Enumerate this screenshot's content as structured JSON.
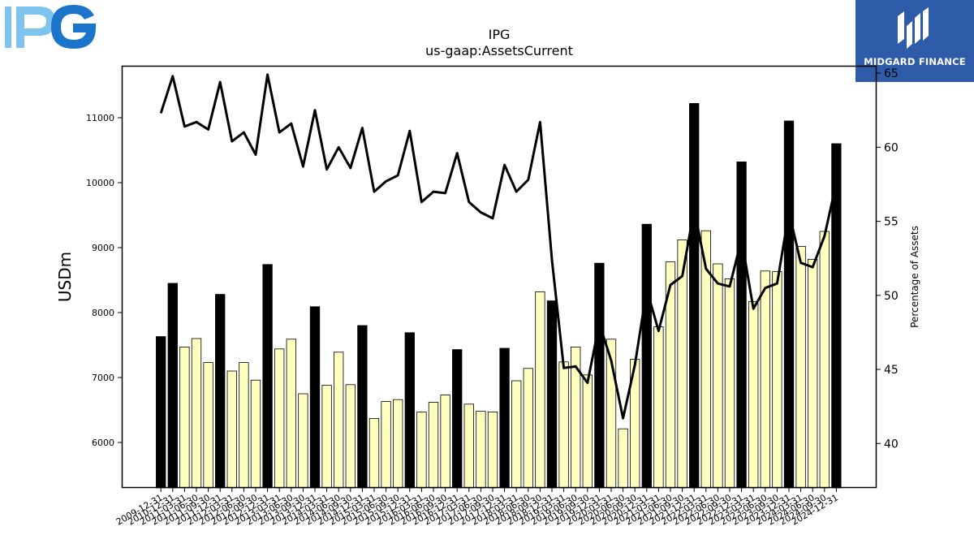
{
  "header": {
    "company_logo_text": "IPG",
    "brand_text": "MIDGARD FINANCE"
  },
  "colors": {
    "annual_bar": "#000000",
    "quarter_bar": "#ffffc0",
    "bar_edge": "#000000",
    "line": "#000000",
    "logo_blue_light": "#7ec4ee",
    "logo_blue_dark": "#1b74c9",
    "brand_bg": "#2f5ca8"
  },
  "chart_data": {
    "type": "bar",
    "title": "IPG",
    "subtitle": "us-gaap:AssetsCurrent",
    "ylabel": "USDm",
    "y2label": "Percentage of Assets",
    "ylim": [
      5300,
      11800
    ],
    "y2lim": [
      37,
      65.5
    ],
    "yticks": [
      6000,
      7000,
      8000,
      9000,
      10000,
      11000
    ],
    "y2ticks": [
      40,
      45,
      50,
      55,
      60,
      65
    ],
    "categories": [
      "2009-12-31",
      "2010-12-31",
      "2011-03-31",
      "2011-06-30",
      "2011-09-30",
      "2011-12-31",
      "2012-03-31",
      "2012-06-30",
      "2012-09-30",
      "2012-12-31",
      "2013-03-31",
      "2013-06-30",
      "2013-09-30",
      "2013-12-31",
      "2014-03-31",
      "2014-06-30",
      "2014-09-30",
      "2014-12-31",
      "2015-03-31",
      "2015-06-30",
      "2015-09-30",
      "2015-12-31",
      "2016-03-31",
      "2016-06-30",
      "2016-09-30",
      "2016-12-31",
      "2017-03-31",
      "2017-06-30",
      "2017-09-30",
      "2017-12-31",
      "2018-03-31",
      "2018-06-30",
      "2018-09-30",
      "2018-12-31",
      "2019-03-31",
      "2019-06-30",
      "2019-09-30",
      "2019-12-31",
      "2020-03-31",
      "2020-06-30",
      "2020-09-30",
      "2020-12-31",
      "2021-03-31",
      "2021-06-30",
      "2021-09-30",
      "2021-12-31",
      "2022-03-31",
      "2022-06-30",
      "2022-09-30",
      "2022-12-31",
      "2023-03-31",
      "2023-06-30",
      "2023-09-30",
      "2023-12-31",
      "2024-03-31",
      "2024-06-30",
      "2024-09-30",
      "2024-12-31"
    ],
    "series": [
      {
        "values": [
          7630,
          8450,
          7470,
          7600,
          7230,
          8280,
          7100,
          7230,
          6960,
          8740,
          7440,
          7590,
          6750,
          8090,
          6880,
          7390,
          6890,
          7800,
          6370,
          6630,
          6660,
          7690,
          6470,
          6620,
          6730,
          7430,
          6590,
          6480,
          6470,
          7450,
          6950,
          7140,
          8320,
          8180,
          7240,
          7470,
          7040,
          8760,
          7590,
          6210,
          7280,
          9360,
          7780,
          8780,
          9120,
          11220,
          9260,
          8750,
          8520,
          10320,
          8170,
          8640,
          8630,
          10950,
          9020,
          8820,
          9250,
          10600
        ],
        "annual_flags": [
          1,
          1,
          0,
          0,
          0,
          1,
          0,
          0,
          0,
          1,
          0,
          0,
          0,
          1,
          0,
          0,
          0,
          1,
          0,
          0,
          0,
          1,
          0,
          0,
          0,
          1,
          0,
          0,
          0,
          1,
          0,
          0,
          0,
          1,
          0,
          0,
          0,
          1,
          0,
          0,
          0,
          1,
          0,
          0,
          0,
          1,
          0,
          0,
          0,
          1,
          0,
          0,
          0,
          1,
          0,
          0,
          0,
          1
        ]
      },
      {
        "axis": "right",
        "values": [
          62.3,
          64.8,
          61.4,
          61.7,
          61.2,
          64.4,
          60.4,
          61.0,
          59.5,
          64.9,
          61.0,
          61.6,
          58.7,
          62.5,
          58.5,
          60.0,
          58.6,
          61.3,
          57.0,
          57.7,
          58.1,
          61.1,
          56.3,
          57.0,
          56.9,
          59.6,
          56.3,
          55.6,
          55.2,
          58.8,
          57.0,
          57.8,
          61.7,
          52.4,
          45.1,
          45.2,
          44.1,
          48.1,
          45.6,
          41.7,
          45.3,
          50.4,
          47.6,
          50.7,
          51.3,
          55.8,
          51.8,
          50.8,
          50.6,
          53.8,
          49.1,
          50.5,
          50.8,
          55.6,
          52.2,
          51.9,
          54.0,
          57.6
        ]
      }
    ]
  }
}
